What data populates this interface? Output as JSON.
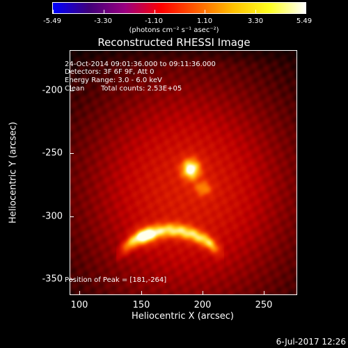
{
  "colorbar": {
    "tick_labels": [
      "-5.49",
      "-3.30",
      "-1.10",
      "1.10",
      "3.30",
      "5.49"
    ],
    "units_label": "(photons cm⁻² s⁻¹ asec⁻²)",
    "colors": [
      "#0000ff",
      "#40007a",
      "#9a0080",
      "#ff0000",
      "#ff6000",
      "#ffc000",
      "#ffff20",
      "#ffffff"
    ]
  },
  "title": "Reconstructed RHESSI Image",
  "info": {
    "time_range": "24-Oct-2014 09:01:36.000 to 09:11:36.000",
    "detectors": "Detectors: 3F 6F 9F, Att 0",
    "energy_range": "Energy Range: 3.0 - 6.0 keV",
    "algorithm": "Clean",
    "total_counts": "Total counts: 2.53E+05",
    "peak_position": "Position of Peak = [181,-264]"
  },
  "axes": {
    "xlabel": "Heliocentric X (arcsec)",
    "ylabel": "Heliocentric Y (arcsec)",
    "x_ticks": [
      "100",
      "150",
      "200",
      "250"
    ],
    "y_ticks": [
      "-200",
      "-250",
      "-300",
      "-350"
    ],
    "xlim": [
      80,
      270
    ],
    "ylim": [
      -362,
      -172
    ]
  },
  "image": {
    "peak_x": 181,
    "peak_y": -264,
    "sources": [
      {
        "name": "upper-footpoint",
        "x": 181,
        "y": -264
      },
      {
        "name": "lower-arc",
        "x": 155,
        "y": -320
      }
    ]
  },
  "footer": {
    "timestamp": "6-Jul-2017 12:26"
  }
}
